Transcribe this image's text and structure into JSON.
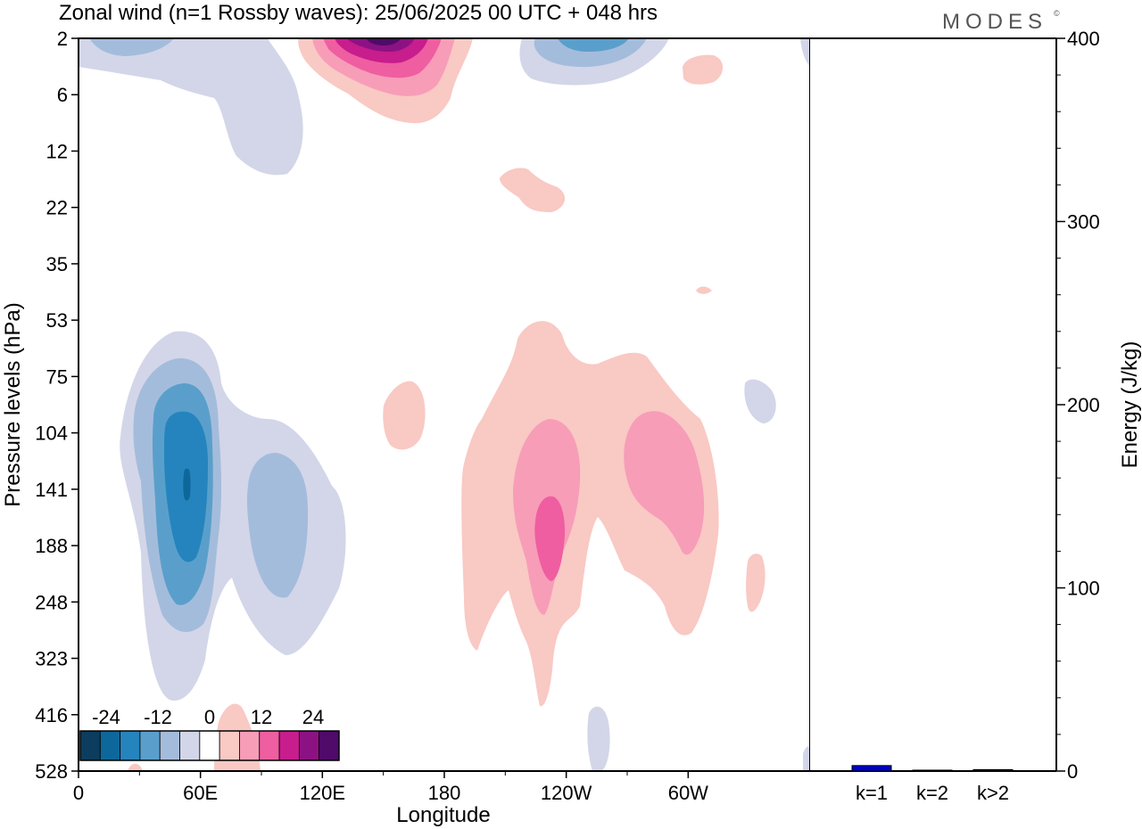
{
  "header": {
    "title": "Zonal wind (n=1 Rossby waves):  25/06/2025  00 UTC  + 048 hrs",
    "brand": "MODES",
    "brand_mark": "©"
  },
  "colors": {
    "blue": [
      "#0c3d5e",
      "#0e679a",
      "#2584bd",
      "#5a9fcb",
      "#a4bcdb",
      "#d3d6e8"
    ],
    "white": "#ffffff",
    "pink": [
      "#f9c9c4",
      "#f79db8",
      "#ef5ea0",
      "#c71d8d",
      "#8c1283",
      "#4f0a6a"
    ],
    "energy_bar": "#0000cc"
  },
  "chart_data": [
    {
      "type": "heatmap",
      "description_variable": "zonal wind",
      "xlabel": "Longitude",
      "ylabel": "Pressure levels (hPa)",
      "x_ticks": [
        "0",
        "60E",
        "120E",
        "180",
        "120W",
        "60W"
      ],
      "y_ticks": [
        "2",
        "6",
        "12",
        "22",
        "35",
        "53",
        "75",
        "104",
        "141",
        "188",
        "248",
        "323",
        "416",
        "528"
      ],
      "colorbar": {
        "labels": [
          "-24",
          "-12",
          "0",
          "12",
          "24"
        ],
        "levels": [
          -30,
          -25,
          -20,
          -15,
          -10,
          -5,
          0,
          5,
          10,
          15,
          20,
          25,
          30
        ]
      },
      "features": [
        {
          "sign": "negative",
          "lon": "55E",
          "level_hPa": 141,
          "min_value": -24
        },
        {
          "sign": "negative",
          "lon": "100E",
          "level_hPa": 188,
          "min_value": -12
        },
        {
          "sign": "negative",
          "lon": "20E",
          "level_hPa": 2,
          "min_value": -8
        },
        {
          "sign": "negative",
          "lon": "125W",
          "level_hPa": 2,
          "min_value": -16
        },
        {
          "sign": "positive",
          "lon": "150E",
          "level_hPa": 2,
          "max_value": 30
        },
        {
          "sign": "positive",
          "lon": "115W",
          "level_hPa": 141,
          "max_value": 15
        },
        {
          "sign": "positive",
          "lon": "70W",
          "level_hPa": 141,
          "max_value": 12
        }
      ]
    },
    {
      "type": "bar",
      "ylabel": "Energy (J/kg)",
      "categories": [
        "k=1",
        "k=2",
        "k>2"
      ],
      "values": [
        3,
        0.5,
        0.8
      ],
      "ylim": [
        0,
        400
      ],
      "y_ticks": [
        "0",
        "100",
        "200",
        "300",
        "400"
      ]
    }
  ]
}
